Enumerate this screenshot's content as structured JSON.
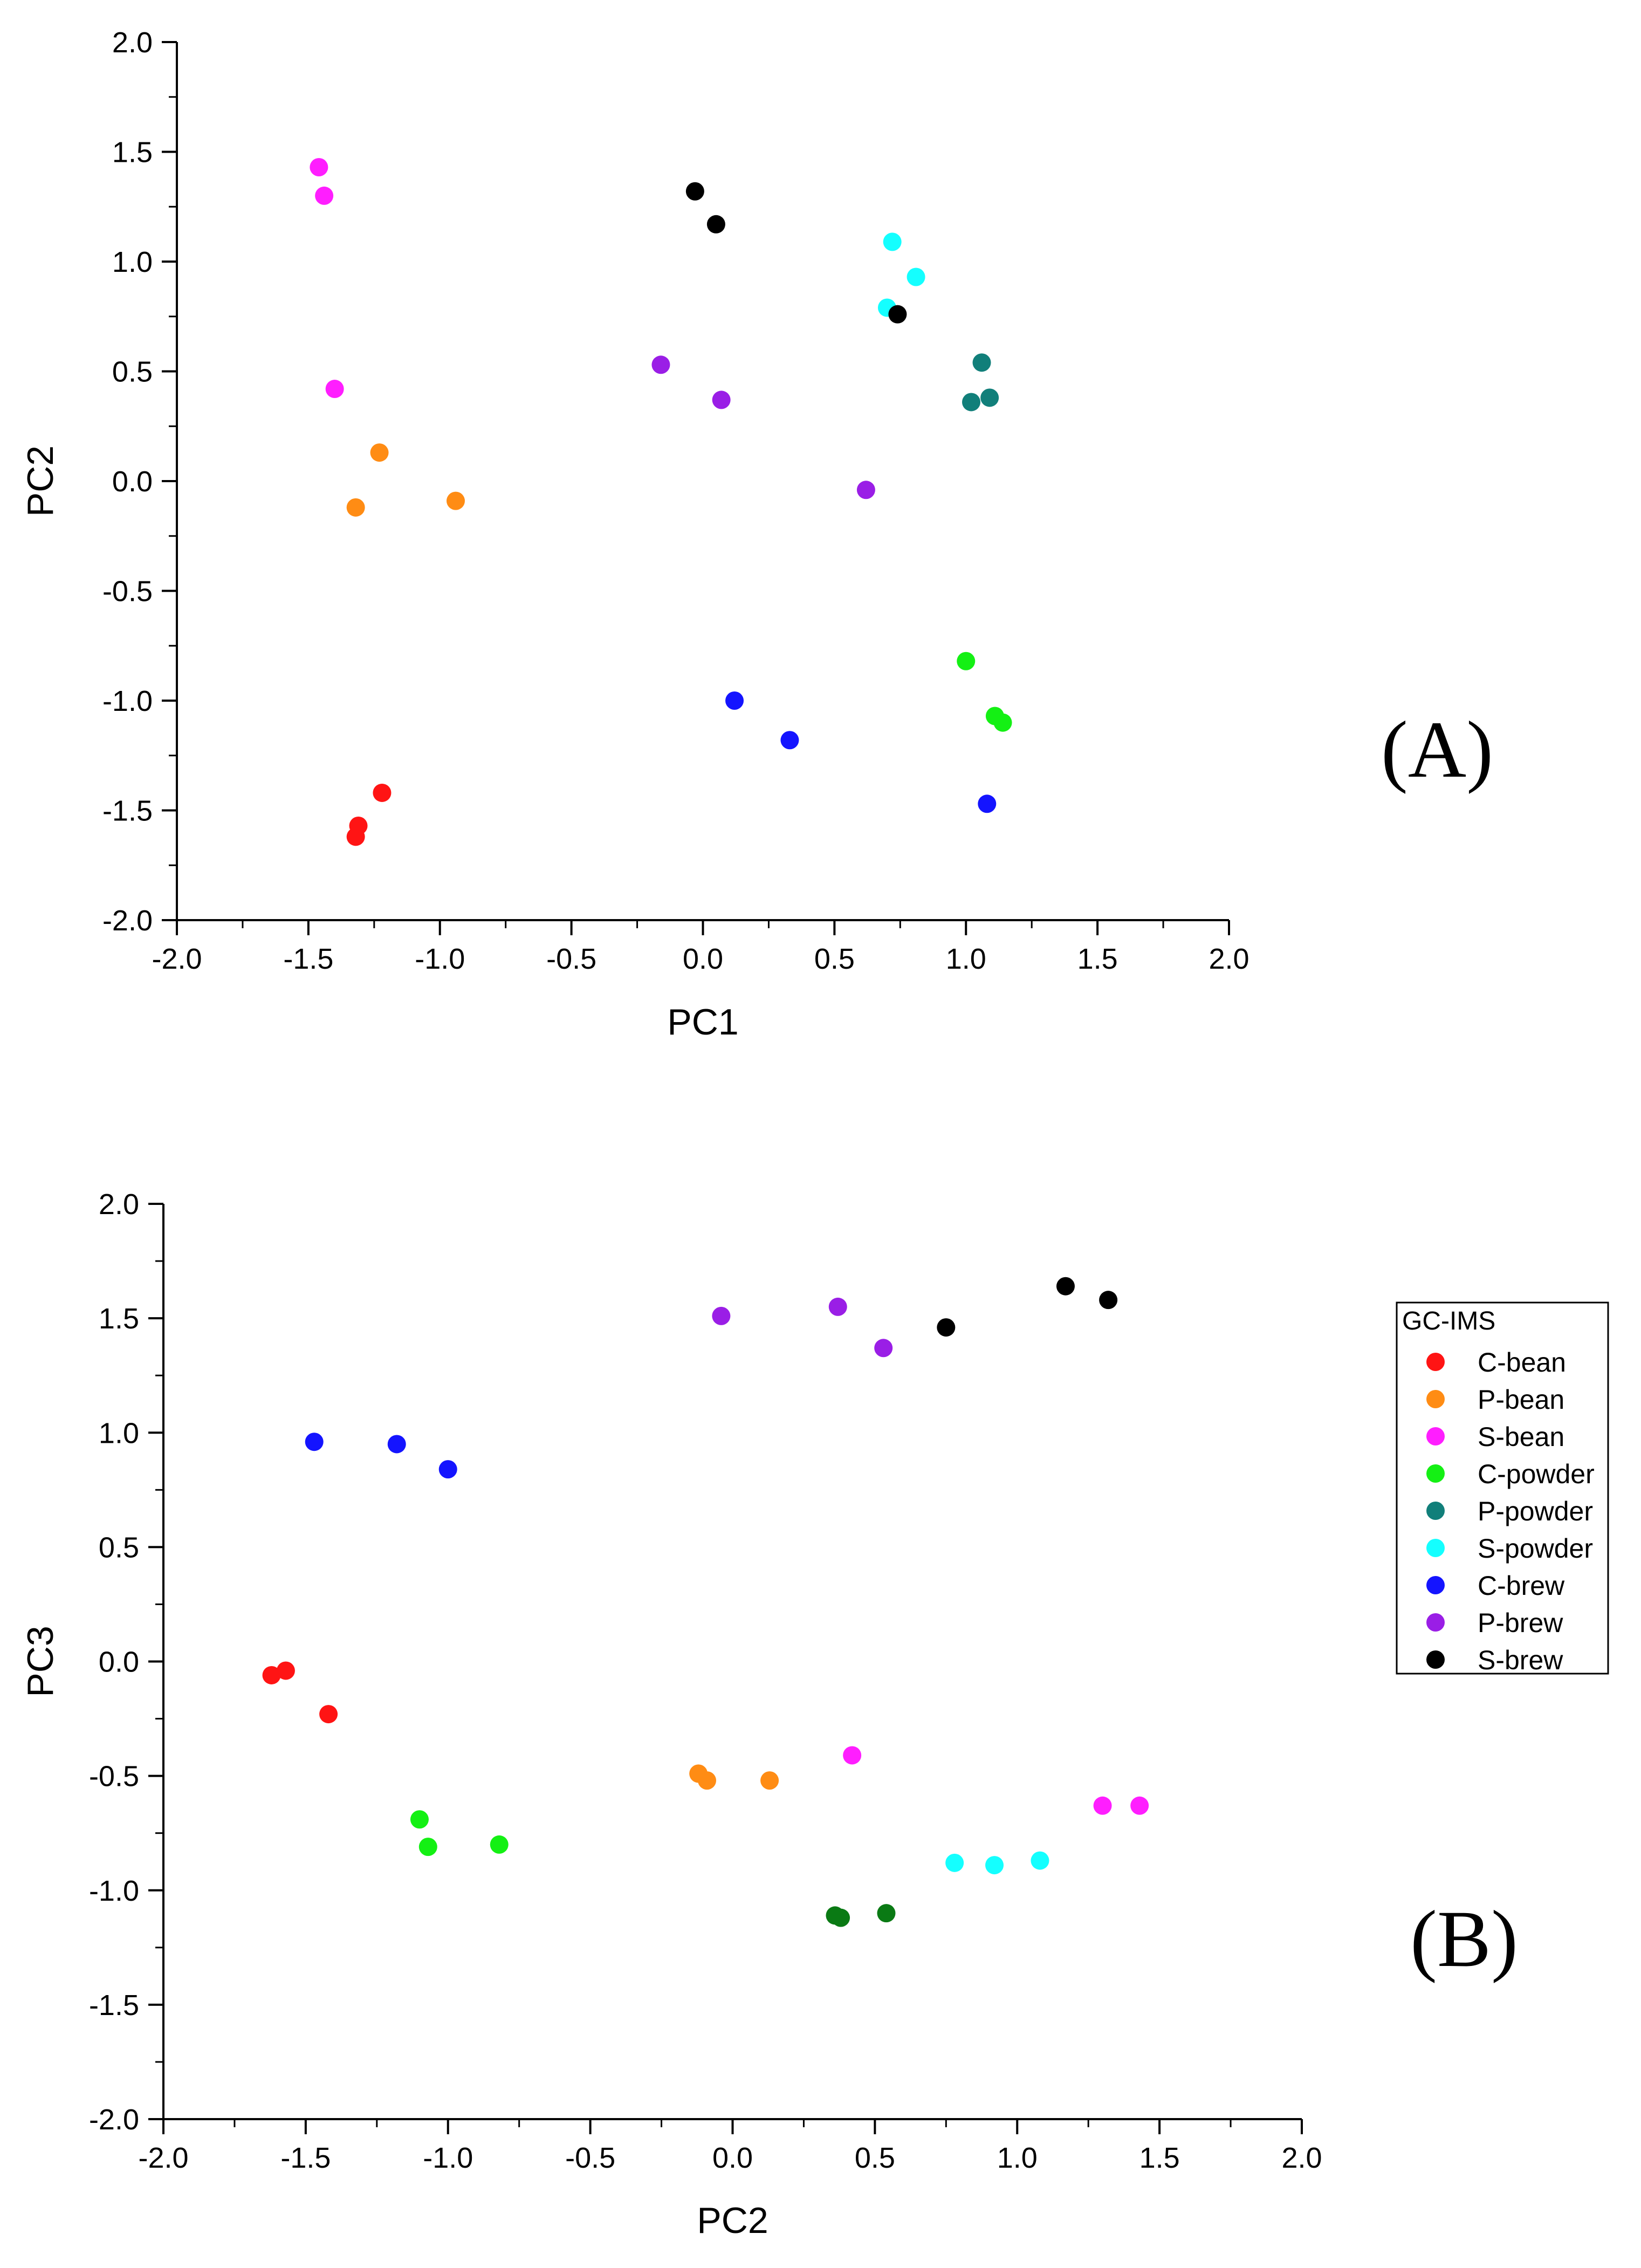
{
  "colors": {
    "C-bean": "#ff1414",
    "P-bean": "#ff8c14",
    "S-bean": "#ff1eff",
    "C-powder": "#14f014",
    "P-powder": "#117f7a",
    "S-powder": "#14ffff",
    "C-brew": "#1414ff",
    "P-brew": "#9a1ee6",
    "S-brew": "#000000",
    "P-powder-B": "#0a7a14"
  },
  "legend": {
    "title": "GC-IMS",
    "entries": [
      "C-bean",
      "P-bean",
      "S-bean",
      "C-powder",
      "P-powder",
      "S-powder",
      "C-brew",
      "P-brew",
      "S-brew"
    ]
  },
  "chart_data": [
    {
      "type": "scatter",
      "panel_label": "(A)",
      "title": "",
      "xlabel": "PC1",
      "ylabel": "PC2",
      "xlim": [
        -2.0,
        2.0
      ],
      "ylim": [
        -2.0,
        2.0
      ],
      "xticks": [
        "-2.0",
        "-1.5",
        "-1.0",
        "-0.5",
        "0.0",
        "0.5",
        "1.0",
        "1.5",
        "2.0"
      ],
      "yticks": [
        "2.0",
        "1.5",
        "1.0",
        "0.5",
        "0.0",
        "-0.5",
        "-1.0",
        "-1.5",
        "-2.0"
      ],
      "series": [
        {
          "name": "C-bean",
          "x": [
            -1.22,
            -1.31,
            -1.32
          ],
          "y": [
            -1.42,
            -1.57,
            -1.62
          ]
        },
        {
          "name": "P-bean",
          "x": [
            -1.23,
            -1.32,
            -0.94
          ],
          "y": [
            0.13,
            -0.12,
            -0.09
          ]
        },
        {
          "name": "S-bean",
          "x": [
            -1.46,
            -1.44,
            -1.4
          ],
          "y": [
            1.43,
            1.3,
            0.42
          ]
        },
        {
          "name": "C-powder",
          "x": [
            1.0,
            1.11,
            1.14
          ],
          "y": [
            -0.82,
            -1.07,
            -1.1
          ]
        },
        {
          "name": "P-powder",
          "x": [
            1.06,
            1.02,
            1.09
          ],
          "y": [
            0.54,
            0.36,
            0.38
          ]
        },
        {
          "name": "S-powder",
          "x": [
            0.72,
            0.81,
            0.7
          ],
          "y": [
            1.09,
            0.93,
            0.79
          ]
        },
        {
          "name": "C-brew",
          "x": [
            0.12,
            0.33,
            1.08
          ],
          "y": [
            -1.0,
            -1.18,
            -1.47
          ]
        },
        {
          "name": "P-brew",
          "x": [
            -0.16,
            0.07,
            0.62
          ],
          "y": [
            0.53,
            0.37,
            -0.04
          ]
        },
        {
          "name": "S-brew",
          "x": [
            -0.03,
            0.05,
            0.74
          ],
          "y": [
            1.32,
            1.17,
            0.76
          ]
        }
      ]
    },
    {
      "type": "scatter",
      "panel_label": "(B)",
      "title": "",
      "xlabel": "PC2",
      "ylabel": "PC3",
      "xlim": [
        -2.0,
        2.0
      ],
      "ylim": [
        -2.0,
        2.0
      ],
      "xticks": [
        "-2.0",
        "-1.5",
        "-1.0",
        "-0.5",
        "0.0",
        "0.5",
        "1.0",
        "1.5",
        "2.0"
      ],
      "yticks": [
        "2.0",
        "1.5",
        "1.0",
        "0.5",
        "0.0",
        "-0.5",
        "-1.0",
        "-1.5",
        "-2.0"
      ],
      "series": [
        {
          "name": "C-bean",
          "x": [
            -1.62,
            -1.57,
            -1.42
          ],
          "y": [
            -0.06,
            -0.04,
            -0.23
          ]
        },
        {
          "name": "P-bean",
          "x": [
            -0.12,
            -0.09,
            0.13
          ],
          "y": [
            -0.49,
            -0.52,
            -0.52
          ]
        },
        {
          "name": "S-bean",
          "x": [
            0.42,
            1.3,
            1.43
          ],
          "y": [
            -0.41,
            -0.63,
            -0.63
          ]
        },
        {
          "name": "C-powder",
          "x": [
            -1.1,
            -1.07,
            -0.82
          ],
          "y": [
            -0.69,
            -0.81,
            -0.8
          ]
        },
        {
          "name": "P-powder",
          "x": [
            0.36,
            0.38,
            0.54
          ],
          "y": [
            -1.11,
            -1.12,
            -1.1
          ],
          "color_key": "P-powder-B"
        },
        {
          "name": "S-powder",
          "x": [
            0.78,
            0.92,
            1.08
          ],
          "y": [
            -0.88,
            -0.89,
            -0.87
          ]
        },
        {
          "name": "C-brew",
          "x": [
            -1.47,
            -1.18,
            -1.0
          ],
          "y": [
            0.96,
            0.95,
            0.84
          ]
        },
        {
          "name": "P-brew",
          "x": [
            -0.04,
            0.37,
            0.53
          ],
          "y": [
            1.51,
            1.55,
            1.37
          ]
        },
        {
          "name": "S-brew",
          "x": [
            0.75,
            1.17,
            1.32
          ],
          "y": [
            1.46,
            1.64,
            1.58
          ]
        }
      ]
    }
  ]
}
